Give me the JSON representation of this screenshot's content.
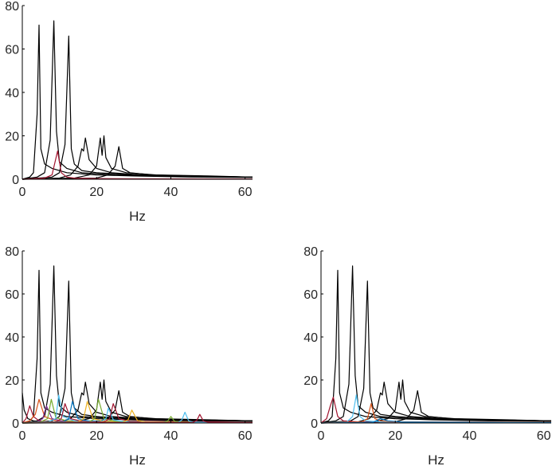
{
  "chart_data": [
    {
      "type": "line",
      "title": "",
      "xlabel": "Hz",
      "ylabel": "",
      "xlim": [
        0,
        62
      ],
      "ylim": [
        0,
        80
      ],
      "xticks": [
        0,
        20,
        40,
        60
      ],
      "yticks": [
        0,
        20,
        40,
        60,
        80
      ],
      "grid": false,
      "series": [
        {
          "color": "#000000",
          "x": [
            0,
            2,
            3,
            4,
            4.5,
            5,
            6,
            8,
            12,
            20,
            30,
            45,
            62
          ],
          "y": [
            0,
            1,
            3,
            30,
            71,
            14,
            7,
            5,
            3,
            2,
            1.5,
            1,
            0.8
          ]
        },
        {
          "color": "#000000",
          "x": [
            0,
            4,
            6,
            7.5,
            8.5,
            9.2,
            10,
            12,
            16,
            25,
            40,
            62
          ],
          "y": [
            0,
            1,
            3,
            18,
            73,
            22,
            8,
            5,
            3,
            2,
            1.5,
            1
          ]
        },
        {
          "color": "#000000",
          "x": [
            0,
            8,
            10,
            11.5,
            12.5,
            13.2,
            14,
            16,
            20,
            30,
            45,
            62
          ],
          "y": [
            0,
            1,
            3,
            16,
            66,
            14,
            7,
            4,
            3,
            2,
            1.5,
            1
          ]
        },
        {
          "color": "#000000",
          "x": [
            0,
            10,
            13,
            15,
            16,
            16.5,
            17,
            18,
            20,
            24,
            32,
            45,
            62
          ],
          "y": [
            0,
            0.5,
            2,
            6,
            14,
            13,
            19,
            9,
            5,
            3,
            2,
            1.5,
            1
          ]
        },
        {
          "color": "#000000",
          "x": [
            0,
            14,
            18,
            20,
            21,
            21.5,
            22,
            22.5,
            24,
            28,
            36,
            50,
            62
          ],
          "y": [
            0,
            0.5,
            2,
            6,
            19,
            11,
            20,
            10,
            5,
            3,
            2,
            1.5,
            1
          ]
        },
        {
          "color": "#000000",
          "x": [
            0,
            20,
            23,
            25,
            26,
            27,
            29,
            35,
            45,
            62
          ],
          "y": [
            0,
            0.5,
            2,
            6,
            15,
            5,
            3,
            2,
            1.5,
            1
          ]
        },
        {
          "color": "#a2142f",
          "x": [
            0,
            6,
            8,
            9.5,
            10.5,
            12,
            14,
            20,
            30,
            62
          ],
          "y": [
            0,
            0.5,
            2,
            13,
            3,
            1,
            0.5,
            0.3,
            0.2,
            0.1
          ]
        }
      ]
    },
    {
      "type": "line",
      "title": "",
      "xlabel": "Hz",
      "ylabel": "",
      "xlim": [
        0,
        62
      ],
      "ylim": [
        0,
        80
      ],
      "xticks": [
        0,
        20,
        40,
        60
      ],
      "yticks": [
        0,
        20,
        40,
        60,
        80
      ],
      "grid": false,
      "series": [
        {
          "color": "#000000",
          "x": [
            0,
            2,
            3,
            4,
            4.5,
            5,
            6,
            8,
            12,
            20,
            30,
            45,
            62
          ],
          "y": [
            0,
            1,
            3,
            30,
            71,
            14,
            7,
            5,
            3,
            2,
            1.5,
            1,
            0.8
          ]
        },
        {
          "color": "#000000",
          "x": [
            0,
            4,
            6,
            7.5,
            8.5,
            9.2,
            10,
            12,
            16,
            25,
            40,
            62
          ],
          "y": [
            0,
            1,
            3,
            18,
            73,
            22,
            8,
            5,
            3,
            2,
            1.5,
            1
          ]
        },
        {
          "color": "#000000",
          "x": [
            0,
            8,
            10,
            11.5,
            12.5,
            13.2,
            14,
            16,
            20,
            30,
            45,
            62
          ],
          "y": [
            0,
            1,
            3,
            16,
            66,
            14,
            7,
            4,
            3,
            2,
            1.5,
            1
          ]
        },
        {
          "color": "#000000",
          "x": [
            0,
            10,
            13,
            15,
            16,
            16.5,
            17,
            18,
            20,
            24,
            32,
            45,
            62
          ],
          "y": [
            0,
            0.5,
            2,
            6,
            14,
            13,
            19,
            9,
            5,
            3,
            2,
            1.5,
            1
          ]
        },
        {
          "color": "#000000",
          "x": [
            0,
            14,
            18,
            20,
            21,
            21.5,
            22,
            22.5,
            24,
            28,
            36,
            50,
            62
          ],
          "y": [
            0,
            0.5,
            2,
            6,
            19,
            11,
            20,
            10,
            5,
            3,
            2,
            1.5,
            1
          ]
        },
        {
          "color": "#000000",
          "x": [
            0,
            20,
            23,
            25,
            26,
            27,
            29,
            35,
            45,
            62
          ],
          "y": [
            0,
            0.5,
            2,
            6,
            15,
            5,
            3,
            2,
            1.5,
            1
          ]
        },
        {
          "color": "#000000",
          "x": [
            0,
            0.5,
            1.5,
            3,
            6,
            62
          ],
          "y": [
            14,
            6,
            2,
            1,
            0.5,
            0.3
          ]
        },
        {
          "color": "#a2142f",
          "x": [
            0,
            1,
            2,
            3,
            4.5,
            7,
            62
          ],
          "y": [
            0,
            2,
            8,
            3,
            1,
            0.5,
            0.3
          ]
        },
        {
          "color": "#d95319",
          "x": [
            0,
            2,
            3.5,
            4.5,
            6,
            9,
            62
          ],
          "y": [
            0,
            1,
            4,
            11,
            3,
            1,
            0.3
          ]
        },
        {
          "color": "#7e2f8e",
          "x": [
            0,
            4,
            5.5,
            6.5,
            8,
            11,
            62
          ],
          "y": [
            0,
            0.5,
            2,
            8,
            2,
            0.8,
            0.3
          ]
        },
        {
          "color": "#77ac30",
          "x": [
            0,
            5,
            6.8,
            7.8,
            9,
            12,
            62
          ],
          "y": [
            0,
            0.5,
            2,
            11,
            2.5,
            1,
            0.3
          ]
        },
        {
          "color": "#4dbeee",
          "x": [
            0,
            7,
            9,
            9.8,
            11,
            14,
            62
          ],
          "y": [
            0,
            0.5,
            2,
            13,
            3,
            1,
            0.3
          ]
        },
        {
          "color": "#a2142f",
          "x": [
            0,
            9,
            10.5,
            11.5,
            13,
            16,
            62
          ],
          "y": [
            0,
            0.5,
            2,
            9,
            2,
            0.8,
            0.3
          ]
        },
        {
          "color": "#0072bd",
          "x": [
            0,
            11,
            12.5,
            13.5,
            15,
            18,
            62
          ],
          "y": [
            0,
            0.5,
            2,
            10,
            2,
            0.8,
            0.3
          ]
        },
        {
          "color": "#edb120",
          "x": [
            0,
            15,
            16.5,
            17.5,
            19,
            22,
            62
          ],
          "y": [
            0,
            0.5,
            2,
            10,
            2,
            0.8,
            0.3
          ]
        },
        {
          "color": "#77ac30",
          "x": [
            0,
            18,
            19.5,
            20.5,
            22,
            25,
            62
          ],
          "y": [
            0,
            0.5,
            2,
            11,
            2,
            0.8,
            0.3
          ]
        },
        {
          "color": "#4dbeee",
          "x": [
            0,
            21,
            22.5,
            23.2,
            24.5,
            27,
            62
          ],
          "y": [
            0,
            0.5,
            2,
            7,
            1.5,
            0.7,
            0.3
          ]
        },
        {
          "color": "#a2142f",
          "x": [
            0,
            22,
            23.5,
            24.5,
            26,
            29,
            62
          ],
          "y": [
            0,
            0.5,
            2,
            9,
            2,
            0.8,
            0.3
          ]
        },
        {
          "color": "#edb120",
          "x": [
            0,
            27,
            28.5,
            29.5,
            31,
            33,
            62
          ],
          "y": [
            0,
            0.3,
            1.5,
            6,
            1.2,
            0.5,
            0.2
          ]
        },
        {
          "color": "#77ac30",
          "x": [
            0,
            38,
            39.2,
            40,
            41,
            43,
            62
          ],
          "y": [
            0,
            0.3,
            1,
            3,
            0.8,
            0.4,
            0.2
          ]
        },
        {
          "color": "#4dbeee",
          "x": [
            0,
            42,
            43,
            43.8,
            44.8,
            46,
            62
          ],
          "y": [
            0,
            0.3,
            1.5,
            5,
            1,
            0.4,
            0.2
          ]
        },
        {
          "color": "#a2142f",
          "x": [
            0,
            46,
            47,
            47.8,
            48.8,
            50,
            62
          ],
          "y": [
            0,
            0.3,
            1.2,
            4,
            0.8,
            0.4,
            0.2
          ]
        }
      ]
    },
    {
      "type": "line",
      "title": "",
      "xlabel": "Hz",
      "ylabel": "",
      "xlim": [
        0,
        62
      ],
      "ylim": [
        0,
        80
      ],
      "xticks": [
        0,
        20,
        40,
        60
      ],
      "yticks": [
        0,
        20,
        40,
        60,
        80
      ],
      "grid": false,
      "series": [
        {
          "color": "#000000",
          "x": [
            0,
            2,
            3,
            4,
            4.5,
            5,
            6,
            8,
            12,
            20,
            30,
            45,
            62
          ],
          "y": [
            0,
            1,
            3,
            30,
            71,
            14,
            7,
            5,
            3,
            2,
            1.5,
            1,
            0.8
          ]
        },
        {
          "color": "#000000",
          "x": [
            0,
            4,
            6,
            7.5,
            8.5,
            9.2,
            10,
            12,
            16,
            25,
            40,
            62
          ],
          "y": [
            0,
            1,
            3,
            18,
            73,
            22,
            8,
            5,
            3,
            2,
            1.5,
            1
          ]
        },
        {
          "color": "#000000",
          "x": [
            0,
            8,
            10,
            11.5,
            12.5,
            13.2,
            14,
            16,
            20,
            30,
            45,
            62
          ],
          "y": [
            0,
            1,
            3,
            16,
            66,
            14,
            7,
            4,
            3,
            2,
            1.5,
            1
          ]
        },
        {
          "color": "#000000",
          "x": [
            0,
            10,
            13,
            15,
            16,
            16.5,
            17,
            18,
            20,
            24,
            32,
            45,
            62
          ],
          "y": [
            0,
            0.5,
            2,
            6,
            14,
            13,
            19,
            9,
            5,
            3,
            2,
            1.5,
            1
          ]
        },
        {
          "color": "#000000",
          "x": [
            0,
            14,
            18,
            20,
            21,
            21.5,
            22,
            22.5,
            24,
            28,
            36,
            50,
            62
          ],
          "y": [
            0,
            0.5,
            2,
            6,
            19,
            11,
            20,
            10,
            5,
            3,
            2,
            1.5,
            1
          ]
        },
        {
          "color": "#000000",
          "x": [
            0,
            20,
            23,
            25,
            26,
            27,
            29,
            35,
            45,
            62
          ],
          "y": [
            0,
            0.5,
            2,
            6,
            15,
            5,
            3,
            2,
            1.5,
            1
          ]
        },
        {
          "color": "#a2142f",
          "x": [
            0,
            1.5,
            2.5,
            3.3,
            4.5,
            6,
            10,
            62
          ],
          "y": [
            0,
            2,
            8,
            12,
            3,
            1,
            0.5,
            0.3
          ]
        },
        {
          "color": "#4dbeee",
          "x": [
            0,
            7,
            8.5,
            9.5,
            10.5,
            12,
            16,
            62
          ],
          "y": [
            0,
            0.5,
            3,
            13,
            3,
            1,
            0.5,
            0.3
          ]
        },
        {
          "color": "#d95319",
          "x": [
            0,
            11,
            12.5,
            13.5,
            14.5,
            16,
            20,
            62
          ],
          "y": [
            0,
            0.5,
            2,
            9,
            2,
            1,
            0.5,
            0.3
          ]
        },
        {
          "color": "#0072bd",
          "x": [
            0,
            14,
            16,
            18,
            22,
            62
          ],
          "y": [
            0,
            0.3,
            2,
            1,
            0.4,
            0.2
          ]
        }
      ]
    }
  ]
}
